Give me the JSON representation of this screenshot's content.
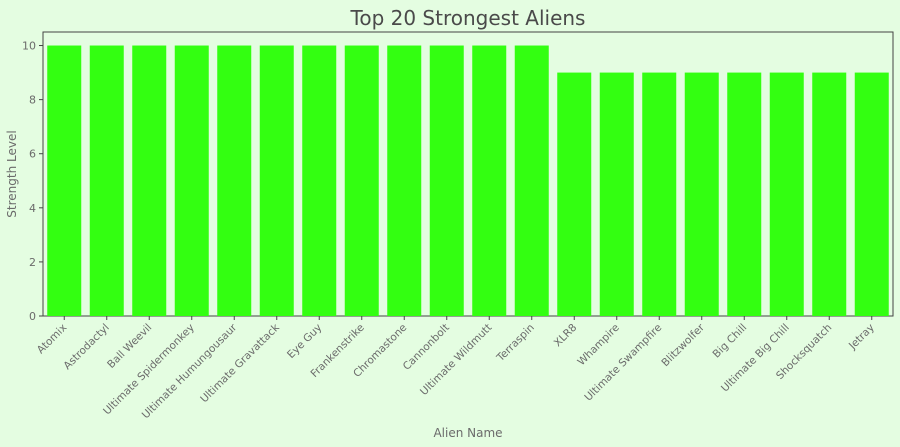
{
  "chart_data": {
    "type": "bar",
    "title": "Top 20 Strongest Aliens",
    "xlabel": "Alien Name",
    "ylabel": "Strength Level",
    "categories": [
      "Atomix",
      "Astrodactyl",
      "Ball Weevil",
      "Ultimate Spidermonkey",
      "Ultimate Humungousaur",
      "Ultimate Gravattack",
      "Eye Guy",
      "Frankenstrike",
      "Chromastone",
      "Cannonbolt",
      "Ultimate Wildmutt",
      "Terraspin",
      "XLR8",
      "Whampire",
      "Ultimate Swampfire",
      "Blitzwolfer",
      "Big Chill",
      "Ultimate Big Chill",
      "Shocksquatch",
      "Jetray"
    ],
    "values": [
      10,
      10,
      10,
      10,
      10,
      10,
      10,
      10,
      10,
      10,
      10,
      10,
      9,
      9,
      9,
      9,
      9,
      9,
      9,
      9
    ],
    "yticks": [
      0,
      2,
      4,
      6,
      8,
      10
    ],
    "ylim": [
      0,
      10.5
    ],
    "grid": false,
    "colors": {
      "bar": "#33ff11",
      "background": "#e4fde1",
      "axis": "#444444"
    }
  }
}
